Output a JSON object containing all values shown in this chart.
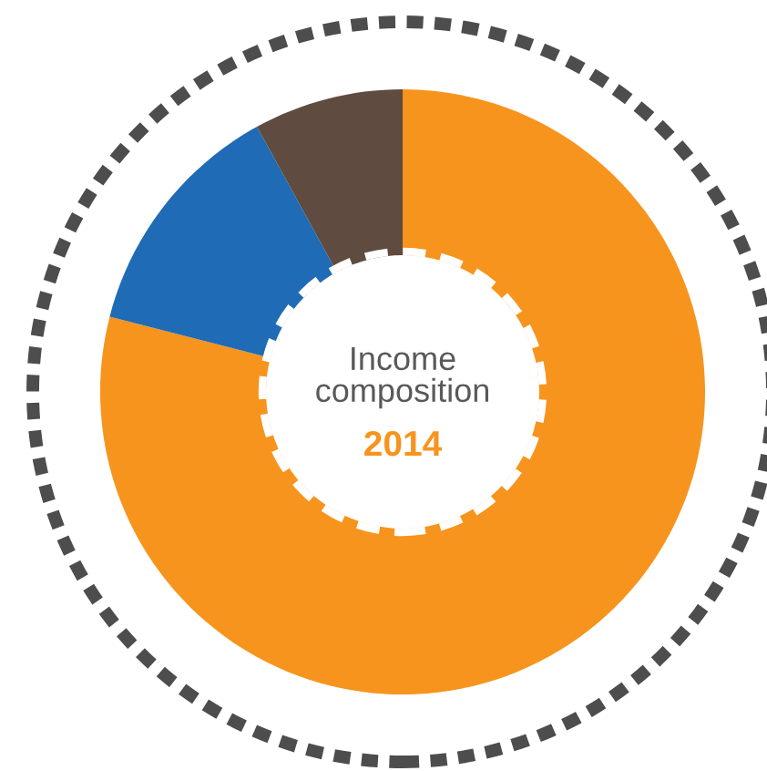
{
  "chart_data": {
    "type": "donut",
    "title": "Income composition",
    "subtitle": "2014",
    "categories": [
      null,
      null,
      null
    ],
    "values": [
      79,
      13,
      8
    ],
    "colors": [
      "#f7941d",
      "#1f6bb5",
      "#5f4b3f"
    ]
  }
}
